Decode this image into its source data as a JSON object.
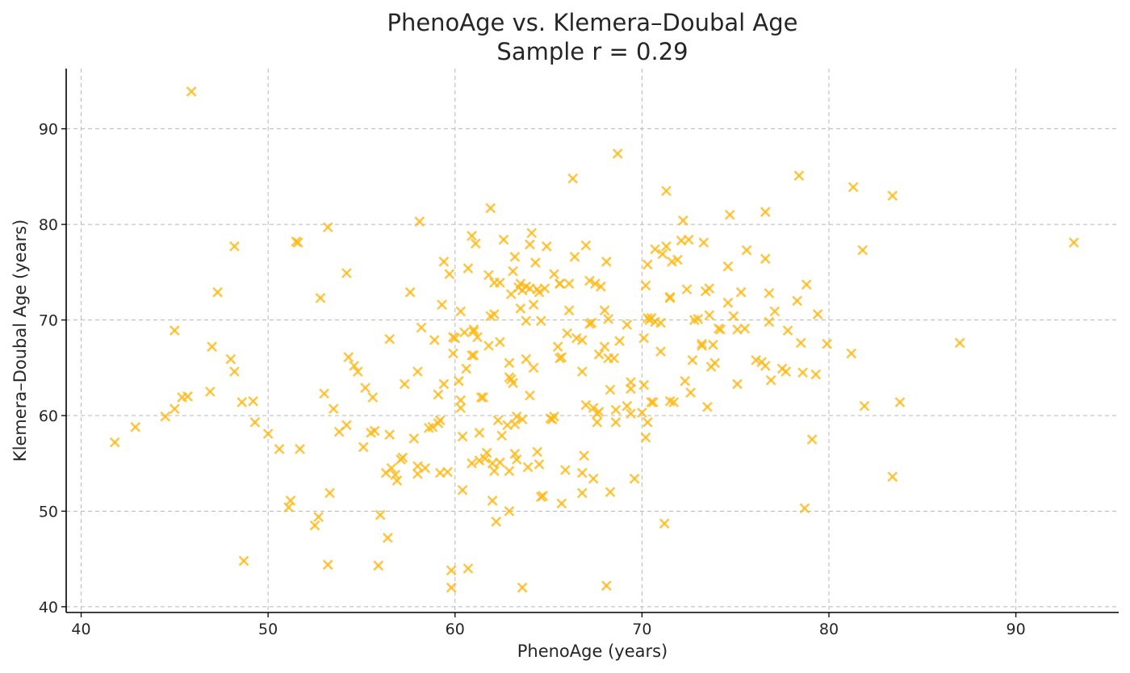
{
  "chart_data": {
    "type": "scatter",
    "title": "PhenoAge vs. Klemera–Doubal Age",
    "subtitle": "Sample r = 0.29",
    "xlabel": "PhenoAge (years)",
    "ylabel": "Klemera–Doubal Age (years)",
    "xlim": [
      39.2,
      95.5
    ],
    "ylim": [
      39.4,
      96.3
    ],
    "xticks": [
      40,
      50,
      60,
      70,
      80,
      90
    ],
    "yticks": [
      40,
      50,
      60,
      70,
      80,
      90
    ],
    "grid": true,
    "legend": "none",
    "marker": "x",
    "color": "#FDB917",
    "points": [
      [
        41.8,
        57.2
      ],
      [
        42.9,
        58.8
      ],
      [
        44.5,
        59.9
      ],
      [
        45.0,
        60.7
      ],
      [
        45.0,
        68.9
      ],
      [
        45.4,
        61.9
      ],
      [
        45.7,
        62.0
      ],
      [
        45.9,
        93.9
      ],
      [
        46.9,
        62.5
      ],
      [
        47.0,
        67.2
      ],
      [
        47.3,
        72.9
      ],
      [
        48.0,
        65.9
      ],
      [
        48.2,
        77.7
      ],
      [
        48.2,
        64.6
      ],
      [
        48.6,
        61.4
      ],
      [
        48.7,
        44.8
      ],
      [
        49.2,
        61.5
      ],
      [
        49.3,
        59.3
      ],
      [
        50.0,
        58.1
      ],
      [
        50.6,
        56.5
      ],
      [
        51.1,
        50.4
      ],
      [
        51.2,
        51.1
      ],
      [
        51.5,
        78.2
      ],
      [
        51.6,
        78.1
      ],
      [
        51.7,
        56.5
      ],
      [
        52.5,
        48.5
      ],
      [
        52.7,
        49.4
      ],
      [
        52.8,
        72.3
      ],
      [
        53.0,
        62.3
      ],
      [
        53.2,
        79.7
      ],
      [
        53.2,
        44.4
      ],
      [
        53.3,
        51.9
      ],
      [
        53.5,
        60.7
      ],
      [
        53.8,
        58.3
      ],
      [
        54.2,
        59.0
      ],
      [
        54.2,
        74.9
      ],
      [
        54.3,
        66.1
      ],
      [
        54.6,
        65.2
      ],
      [
        54.8,
        64.6
      ],
      [
        55.1,
        56.7
      ],
      [
        55.2,
        62.9
      ],
      [
        55.5,
        58.2
      ],
      [
        55.6,
        61.9
      ],
      [
        55.7,
        58.4
      ],
      [
        55.9,
        44.3
      ],
      [
        56.0,
        49.6
      ],
      [
        56.3,
        54.0
      ],
      [
        56.4,
        47.2
      ],
      [
        56.5,
        68.0
      ],
      [
        56.5,
        58.0
      ],
      [
        56.6,
        54.5
      ],
      [
        56.8,
        53.8
      ],
      [
        56.9,
        53.2
      ],
      [
        57.1,
        55.4
      ],
      [
        57.2,
        55.6
      ],
      [
        57.3,
        63.3
      ],
      [
        57.6,
        72.9
      ],
      [
        57.8,
        57.6
      ],
      [
        58.0,
        64.6
      ],
      [
        58.0,
        54.7
      ],
      [
        58.0,
        53.9
      ],
      [
        58.1,
        80.3
      ],
      [
        58.2,
        69.2
      ],
      [
        58.4,
        54.5
      ],
      [
        58.6,
        58.7
      ],
      [
        58.8,
        58.8
      ],
      [
        58.9,
        67.9
      ],
      [
        59.1,
        59.2
      ],
      [
        59.1,
        62.2
      ],
      [
        59.2,
        54.0
      ],
      [
        59.2,
        59.5
      ],
      [
        59.3,
        71.6
      ],
      [
        59.4,
        63.3
      ],
      [
        59.4,
        76.1
      ],
      [
        59.6,
        54.1
      ],
      [
        59.7,
        74.8
      ],
      [
        59.8,
        43.8
      ],
      [
        59.8,
        42.0
      ],
      [
        59.9,
        66.5
      ],
      [
        59.9,
        68.2
      ],
      [
        60.0,
        68.1
      ],
      [
        60.2,
        63.6
      ],
      [
        60.3,
        61.6
      ],
      [
        60.3,
        70.9
      ],
      [
        60.3,
        60.8
      ],
      [
        60.4,
        57.8
      ],
      [
        60.4,
        52.2
      ],
      [
        60.5,
        68.7
      ],
      [
        60.6,
        64.9
      ],
      [
        60.7,
        75.4
      ],
      [
        60.7,
        44.0
      ],
      [
        60.9,
        55.0
      ],
      [
        60.9,
        78.8
      ],
      [
        60.9,
        66.3
      ],
      [
        61.0,
        69.0
      ],
      [
        61.0,
        66.3
      ],
      [
        61.0,
        68.8
      ],
      [
        61.1,
        78.0
      ],
      [
        61.2,
        68.2
      ],
      [
        61.3,
        55.3
      ],
      [
        61.3,
        58.2
      ],
      [
        61.4,
        61.9
      ],
      [
        61.5,
        61.9
      ],
      [
        61.6,
        55.5
      ],
      [
        61.7,
        56.1
      ],
      [
        61.8,
        74.7
      ],
      [
        61.8,
        67.3
      ],
      [
        61.9,
        81.7
      ],
      [
        61.9,
        70.4
      ],
      [
        62.0,
        55.0
      ],
      [
        62.0,
        51.1
      ],
      [
        62.1,
        54.2
      ],
      [
        62.1,
        70.6
      ],
      [
        62.1,
        73.9
      ],
      [
        62.2,
        48.9
      ],
      [
        62.3,
        59.5
      ],
      [
        62.4,
        55.1
      ],
      [
        62.4,
        67.7
      ],
      [
        62.4,
        73.9
      ],
      [
        62.5,
        57.9
      ],
      [
        62.6,
        78.4
      ],
      [
        62.8,
        59.0
      ],
      [
        62.9,
        50.0
      ],
      [
        62.9,
        54.2
      ],
      [
        62.9,
        64.0
      ],
      [
        62.9,
        65.5
      ],
      [
        63.0,
        72.7
      ],
      [
        63.0,
        63.8
      ],
      [
        63.1,
        63.4
      ],
      [
        63.1,
        75.1
      ],
      [
        63.2,
        76.6
      ],
      [
        63.2,
        59.1
      ],
      [
        63.2,
        56.0
      ],
      [
        63.3,
        55.4
      ],
      [
        63.3,
        59.9
      ],
      [
        63.4,
        73.4
      ],
      [
        63.5,
        73.8
      ],
      [
        63.5,
        71.2
      ],
      [
        63.6,
        59.6
      ],
      [
        63.6,
        42.0
      ],
      [
        63.6,
        73.1
      ],
      [
        63.8,
        73.5
      ],
      [
        63.8,
        65.9
      ],
      [
        63.8,
        69.9
      ],
      [
        63.9,
        54.6
      ],
      [
        64.0,
        73.3
      ],
      [
        64.0,
        62.1
      ],
      [
        64.0,
        77.9
      ],
      [
        64.1,
        79.1
      ],
      [
        64.2,
        71.6
      ],
      [
        64.2,
        65.0
      ],
      [
        64.3,
        76.0
      ],
      [
        64.4,
        73.2
      ],
      [
        64.4,
        56.2
      ],
      [
        64.5,
        72.9
      ],
      [
        64.5,
        54.9
      ],
      [
        64.6,
        51.5
      ],
      [
        64.6,
        69.9
      ],
      [
        64.7,
        51.6
      ],
      [
        64.8,
        73.3
      ],
      [
        64.9,
        77.7
      ],
      [
        65.1,
        59.7
      ],
      [
        65.2,
        59.6
      ],
      [
        65.3,
        74.8
      ],
      [
        65.3,
        59.9
      ],
      [
        65.5,
        67.2
      ],
      [
        65.6,
        66.0
      ],
      [
        65.6,
        73.8
      ],
      [
        65.6,
        73.8
      ],
      [
        65.7,
        50.8
      ],
      [
        65.7,
        66.1
      ],
      [
        65.9,
        54.3
      ],
      [
        66.0,
        68.6
      ],
      [
        66.1,
        71.0
      ],
      [
        66.1,
        73.8
      ],
      [
        66.3,
        84.8
      ],
      [
        66.4,
        76.6
      ],
      [
        66.5,
        68.1
      ],
      [
        66.8,
        64.6
      ],
      [
        66.8,
        51.9
      ],
      [
        66.8,
        54.0
      ],
      [
        66.8,
        67.9
      ],
      [
        66.9,
        55.8
      ],
      [
        67.0,
        77.8
      ],
      [
        67.0,
        61.1
      ],
      [
        67.2,
        74.1
      ],
      [
        67.2,
        69.6
      ],
      [
        67.3,
        69.7
      ],
      [
        67.4,
        53.4
      ],
      [
        67.4,
        60.8
      ],
      [
        67.5,
        73.8
      ],
      [
        67.6,
        59.3
      ],
      [
        67.6,
        60.2
      ],
      [
        67.7,
        66.4
      ],
      [
        67.7,
        60.4
      ],
      [
        67.8,
        73.5
      ],
      [
        68.0,
        71.0
      ],
      [
        68.0,
        67.2
      ],
      [
        68.1,
        42.2
      ],
      [
        68.1,
        76.1
      ],
      [
        68.2,
        70.1
      ],
      [
        68.2,
        66.0
      ],
      [
        68.3,
        62.7
      ],
      [
        68.3,
        52.0
      ],
      [
        68.5,
        66.0
      ],
      [
        68.6,
        59.3
      ],
      [
        68.6,
        60.6
      ],
      [
        68.7,
        87.4
      ],
      [
        68.8,
        67.8
      ],
      [
        69.2,
        61.0
      ],
      [
        69.2,
        69.5
      ],
      [
        69.4,
        60.2
      ],
      [
        69.4,
        63.5
      ],
      [
        69.6,
        53.4
      ],
      [
        69.4,
        62.8
      ],
      [
        70.0,
        60.3
      ],
      [
        70.1,
        68.1
      ],
      [
        70.1,
        63.2
      ],
      [
        70.2,
        73.6
      ],
      [
        70.2,
        57.7
      ],
      [
        70.3,
        75.8
      ],
      [
        70.3,
        59.3
      ],
      [
        70.3,
        70.2
      ],
      [
        70.4,
        70.0
      ],
      [
        70.5,
        70.2
      ],
      [
        70.5,
        61.4
      ],
      [
        70.6,
        61.4
      ],
      [
        70.7,
        77.4
      ],
      [
        70.7,
        69.8
      ],
      [
        71.0,
        66.7
      ],
      [
        71.0,
        69.7
      ],
      [
        71.1,
        76.9
      ],
      [
        71.2,
        48.7
      ],
      [
        71.3,
        83.5
      ],
      [
        71.3,
        77.7
      ],
      [
        71.5,
        61.5
      ],
      [
        71.5,
        72.3
      ],
      [
        71.5,
        72.4
      ],
      [
        71.6,
        76.1
      ],
      [
        71.7,
        61.4
      ],
      [
        71.9,
        76.3
      ],
      [
        72.1,
        78.3
      ],
      [
        72.2,
        80.4
      ],
      [
        72.3,
        63.6
      ],
      [
        72.4,
        73.2
      ],
      [
        72.5,
        78.4
      ],
      [
        72.6,
        62.4
      ],
      [
        72.7,
        65.8
      ],
      [
        72.8,
        70.0
      ],
      [
        73.0,
        70.1
      ],
      [
        73.2,
        67.5
      ],
      [
        73.2,
        67.3
      ],
      [
        73.3,
        78.1
      ],
      [
        73.4,
        73.0
      ],
      [
        73.5,
        60.9
      ],
      [
        73.6,
        70.5
      ],
      [
        73.6,
        73.3
      ],
      [
        73.7,
        65.1
      ],
      [
        73.8,
        67.4
      ],
      [
        73.9,
        65.5
      ],
      [
        74.1,
        69.1
      ],
      [
        74.2,
        69.0
      ],
      [
        74.6,
        71.8
      ],
      [
        74.6,
        75.6
      ],
      [
        74.7,
        81.0
      ],
      [
        74.9,
        70.4
      ],
      [
        75.1,
        63.3
      ],
      [
        75.1,
        69.0
      ],
      [
        75.3,
        72.9
      ],
      [
        75.5,
        69.1
      ],
      [
        75.6,
        77.3
      ],
      [
        76.1,
        65.8
      ],
      [
        76.4,
        65.6
      ],
      [
        76.6,
        76.4
      ],
      [
        76.6,
        81.3
      ],
      [
        76.6,
        65.2
      ],
      [
        76.8,
        69.8
      ],
      [
        76.8,
        72.8
      ],
      [
        76.9,
        63.7
      ],
      [
        77.1,
        70.9
      ],
      [
        77.5,
        64.9
      ],
      [
        77.7,
        64.6
      ],
      [
        77.8,
        68.9
      ],
      [
        78.3,
        72.0
      ],
      [
        78.4,
        85.1
      ],
      [
        78.5,
        67.6
      ],
      [
        78.6,
        64.5
      ],
      [
        78.7,
        50.3
      ],
      [
        78.8,
        73.7
      ],
      [
        79.1,
        57.5
      ],
      [
        79.3,
        64.3
      ],
      [
        79.4,
        70.6
      ],
      [
        79.9,
        67.5
      ],
      [
        81.2,
        66.5
      ],
      [
        81.3,
        83.9
      ],
      [
        81.8,
        77.3
      ],
      [
        81.9,
        61.0
      ],
      [
        83.4,
        83.0
      ],
      [
        83.4,
        53.6
      ],
      [
        83.8,
        61.4
      ],
      [
        87.0,
        67.6
      ],
      [
        93.1,
        78.1
      ]
    ]
  }
}
